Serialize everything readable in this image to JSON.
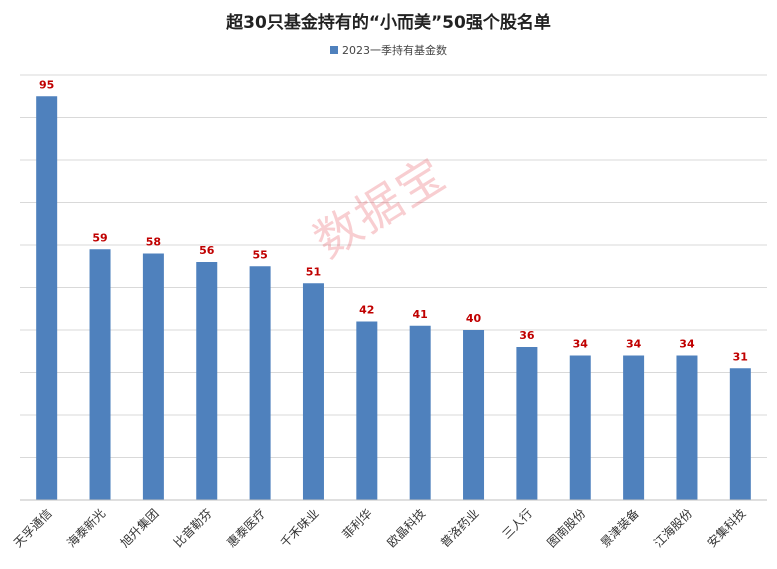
{
  "colors": {
    "bar": "#4f81bd",
    "data_label": "#c00000",
    "grid": "#d9d9d9",
    "watermark": "#e6505a"
  },
  "watermark": "数据宝",
  "chart_data": {
    "type": "bar",
    "title": "超30只基金持有的“小而美”50强个股名单",
    "legend_position": "top",
    "grid": true,
    "ylim": [
      0,
      100
    ],
    "categories": [
      "天孚通信",
      "海泰新光",
      "旭升集团",
      "比音勒芬",
      "惠泰医疗",
      "千禾味业",
      "菲利华",
      "欧晶科技",
      "普洛药业",
      "三人行",
      "图南股份",
      "景津装备",
      "江海股份",
      "安集科技"
    ],
    "series": [
      {
        "name": "2023一季持有基金数",
        "values": [
          95,
          59,
          58,
          56,
          55,
          51,
          42,
          41,
          40,
          36,
          34,
          34,
          34,
          31
        ]
      }
    ]
  }
}
